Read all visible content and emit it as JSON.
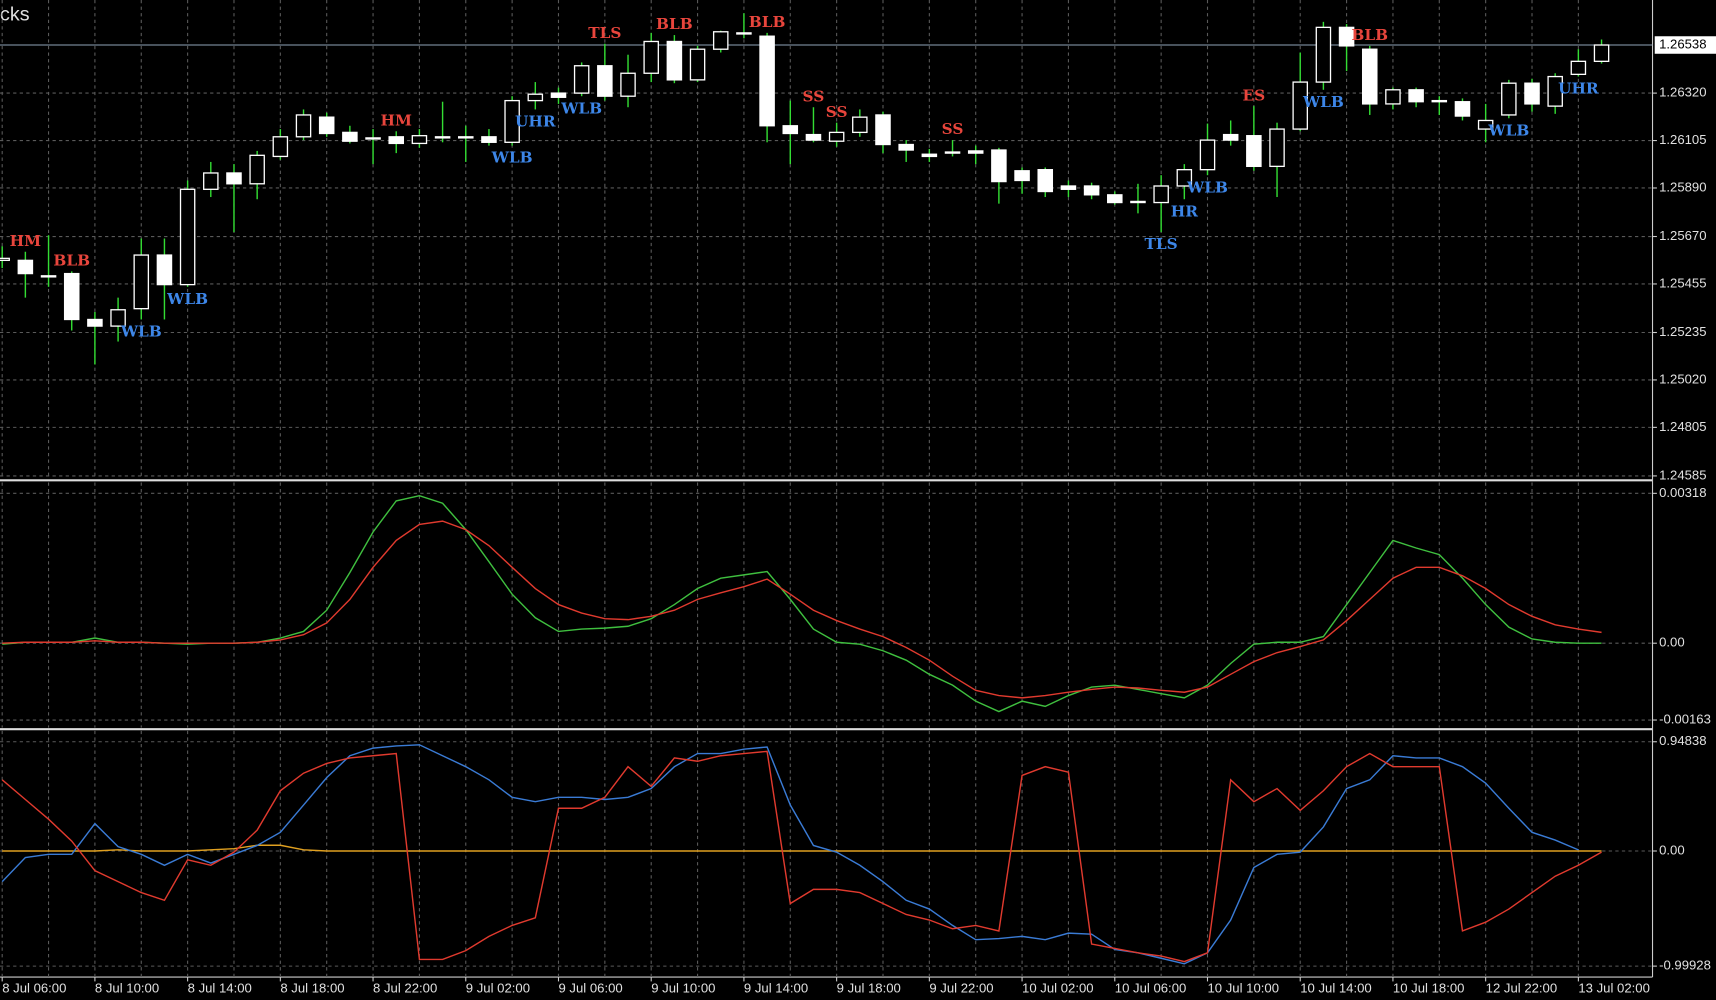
{
  "chart_data": [
    {
      "type": "candlestick",
      "title": "cks",
      "ylim": [
        1.24575,
        1.26742
      ],
      "yticks": [
        {
          "value": 1.2632,
          "label": "1.26320"
        },
        1.26105,
        {
          "value": 1.2589,
          "label": "1.25890"
        },
        {
          "value": 1.2567,
          "label": "1.25670"
        },
        1.25455,
        1.25235,
        {
          "value": 1.2502,
          "label": "1.25020"
        },
        1.24805,
        1.24585
      ],
      "grid": true,
      "up_color": "#ffffff",
      "down_color": "#ffffff",
      "wick_color": "#33dd33",
      "last_price": 1.26538,
      "last_price_color": "#8fa3b8",
      "categories": [
        "8 Jul 06:00",
        null,
        null,
        null,
        "8 Jul 10:00",
        null,
        null,
        null,
        "8 Jul 14:00",
        null,
        null,
        null,
        "8 Jul 18:00",
        null,
        null,
        null,
        "8 Jul 22:00",
        null,
        null,
        null,
        "9 Jul 02:00",
        null,
        null,
        null,
        "9 Jul 06:00",
        null,
        null,
        null,
        "9 Jul 10:00",
        null,
        null,
        null,
        "9 Jul 14:00",
        null,
        null,
        null,
        "9 Jul 18:00",
        null,
        null,
        null,
        "9 Jul 22:00",
        null,
        null,
        null,
        "10 Jul 02:00",
        null,
        null,
        null,
        "10 Jul 06:00",
        null,
        null,
        null,
        "10 Jul 10:00",
        null,
        null,
        null,
        "10 Jul 14:00",
        null,
        null,
        null,
        "10 Jul 18:00",
        null,
        null,
        null,
        "12 Jul 22:00",
        null,
        null,
        null,
        "13 Jul 02:00",
        null
      ],
      "ohlc": [
        [
          1.25562,
          1.25626,
          1.25527,
          1.25571
        ],
        [
          1.25562,
          1.25601,
          1.25393,
          1.25502
        ],
        [
          1.25492,
          1.25676,
          1.25442,
          1.25487
        ],
        [
          1.25502,
          1.25512,
          1.25244,
          1.25294
        ],
        [
          1.25294,
          1.25328,
          1.2509,
          1.25264
        ],
        [
          1.25264,
          1.25393,
          1.25194,
          1.25338
        ],
        [
          1.25343,
          1.25661,
          1.25294,
          1.25586
        ],
        [
          1.25586,
          1.25661,
          1.25294,
          1.25452
        ],
        [
          1.25452,
          1.25924,
          1.25442,
          1.25884
        ],
        [
          1.25884,
          1.26008,
          1.25849,
          1.25958
        ],
        [
          1.25958,
          1.25998,
          1.2569,
          1.25909
        ],
        [
          1.25909,
          1.26058,
          1.25839,
          1.26038
        ],
        [
          1.26033,
          1.26157,
          1.26018,
          1.26122
        ],
        [
          1.26122,
          1.26246,
          1.26107,
          1.26221
        ],
        [
          1.26211,
          1.26231,
          1.26122,
          1.26137
        ],
        [
          1.26142,
          1.26172,
          1.26092,
          1.26102
        ],
        [
          1.26117,
          1.26157,
          1.25998,
          1.26112
        ],
        [
          1.26122,
          1.26147,
          1.26048,
          1.26092
        ],
        [
          1.26092,
          1.26157,
          1.26072,
          1.26127
        ],
        [
          1.26117,
          1.26281,
          1.26097,
          1.26122
        ],
        [
          1.26122,
          1.26172,
          1.26008,
          1.26117
        ],
        [
          1.26122,
          1.26157,
          1.26082,
          1.26097
        ],
        [
          1.26097,
          1.26306,
          1.26082,
          1.26286
        ],
        [
          1.26286,
          1.2637,
          1.26246,
          1.26315
        ],
        [
          1.2632,
          1.26345,
          1.26271,
          1.26301
        ],
        [
          1.2632,
          1.26459,
          1.26306,
          1.26444
        ],
        [
          1.26444,
          1.26544,
          1.26286,
          1.26306
        ],
        [
          1.26306,
          1.26494,
          1.26256,
          1.2641
        ],
        [
          1.2641,
          1.26593,
          1.2637,
          1.26554
        ],
        [
          1.26554,
          1.26583,
          1.26365,
          1.2638
        ],
        [
          1.2638,
          1.26534,
          1.2637,
          1.26519
        ],
        [
          1.26519,
          1.26603,
          1.26504,
          1.26598
        ],
        [
          1.26593,
          1.26682,
          1.26568,
          1.26588
        ],
        [
          1.26578,
          1.26593,
          1.26097,
          1.26172
        ],
        [
          1.26172,
          1.26286,
          1.25998,
          1.26137
        ],
        [
          1.26132,
          1.26256,
          1.26097,
          1.26107
        ],
        [
          1.26102,
          1.26186,
          1.26077,
          1.26142
        ],
        [
          1.26142,
          1.26246,
          1.26122,
          1.26211
        ],
        [
          1.26221,
          1.26236,
          1.26048,
          1.26087
        ],
        [
          1.26087,
          1.26107,
          1.26008,
          1.26062
        ],
        [
          1.26043,
          1.26067,
          1.26008,
          1.26033
        ],
        [
          1.26048,
          1.26107,
          1.26033,
          1.26053
        ],
        [
          1.26058,
          1.26082,
          1.25998,
          1.26048
        ],
        [
          1.26062,
          1.26072,
          1.25819,
          1.25919
        ],
        [
          1.25968,
          1.25983,
          1.25864,
          1.25924
        ],
        [
          1.25973,
          1.25983,
          1.25849,
          1.25874
        ],
        [
          1.25899,
          1.25924,
          1.25849,
          1.25884
        ],
        [
          1.25899,
          1.25914,
          1.25839,
          1.25859
        ],
        [
          1.25859,
          1.25874,
          1.25814,
          1.25824
        ],
        [
          1.25829,
          1.25909,
          1.25775,
          1.25824
        ],
        [
          1.25824,
          1.25948,
          1.2569,
          1.25899
        ],
        [
          1.25899,
          1.25998,
          1.25839,
          1.25973
        ],
        [
          1.25973,
          1.26182,
          1.25948,
          1.26107
        ],
        [
          1.26132,
          1.26196,
          1.26082,
          1.26107
        ],
        [
          1.26127,
          1.26261,
          1.25968,
          1.25988
        ],
        [
          1.25988,
          1.26186,
          1.25849,
          1.26157
        ],
        [
          1.26157,
          1.26504,
          1.26147,
          1.2637
        ],
        [
          1.2637,
          1.26643,
          1.26335,
          1.26618
        ],
        [
          1.26618,
          1.26633,
          1.2642,
          1.26534
        ],
        [
          1.26519,
          1.26534,
          1.26221,
          1.26271
        ],
        [
          1.26271,
          1.26345,
          1.26246,
          1.26335
        ],
        [
          1.26335,
          1.26345,
          1.26256,
          1.26281
        ],
        [
          1.26286,
          1.26306,
          1.26221,
          1.26281
        ],
        [
          1.26281,
          1.26296,
          1.26196,
          1.26216
        ],
        [
          1.26157,
          1.26271,
          1.26097,
          1.26196
        ],
        [
          1.26221,
          1.2638,
          1.26206,
          1.26365
        ],
        [
          1.26365,
          1.26385,
          1.26236,
          1.26271
        ],
        [
          1.26261,
          1.2641,
          1.26226,
          1.26395
        ],
        [
          1.26405,
          1.26519,
          1.26395,
          1.26464
        ],
        [
          1.26464,
          1.26563,
          1.26454,
          1.26538
        ]
      ],
      "patterns": [
        {
          "position": "above",
          "color": "#e8453c",
          "labels": [
            null,
            "HM",
            null,
            "BLB",
            null,
            null,
            null,
            null,
            null,
            null,
            null,
            null,
            null,
            null,
            null,
            null,
            null,
            "HM",
            null,
            null,
            null,
            null,
            null,
            null,
            null,
            null,
            "TLS",
            null,
            null,
            "BLB",
            null,
            null,
            null,
            "BLB",
            null,
            "SS",
            "SS",
            null,
            null,
            null,
            null,
            "SS",
            null,
            null,
            null,
            null,
            null,
            null,
            null,
            null,
            null,
            null,
            null,
            null,
            "ES",
            null,
            null,
            null,
            null,
            "BLB",
            null,
            null,
            null,
            null,
            null,
            null,
            null,
            null,
            null,
            null
          ]
        },
        {
          "position": "below",
          "color": "#3d86e8",
          "labels": [
            null,
            null,
            null,
            null,
            null,
            null,
            "WLB",
            null,
            "WLB",
            null,
            null,
            null,
            null,
            null,
            null,
            null,
            null,
            null,
            null,
            null,
            null,
            null,
            "WLB",
            "UHR",
            null,
            "WLB",
            null,
            null,
            null,
            null,
            null,
            null,
            null,
            null,
            null,
            null,
            null,
            null,
            null,
            null,
            null,
            null,
            null,
            null,
            null,
            null,
            null,
            null,
            null,
            null,
            "TLS",
            "HR",
            "WLB",
            null,
            null,
            null,
            null,
            "WLB",
            null,
            null,
            null,
            null,
            null,
            null,
            null,
            "WLB",
            null,
            null,
            "UHR",
            null
          ]
        }
      ]
    },
    {
      "type": "line",
      "ylim": [
        -0.00179,
        0.00341
      ],
      "yticks": [
        0.00318,
        {
          "value": 0,
          "label": "0.00"
        },
        -0.00163
      ],
      "grid": true,
      "series": [
        {
          "color": "#3fbf3f",
          "values": [
            -2e-05,
            2e-05,
            2e-05,
            2e-05,
            0.00011,
            2e-05,
            2e-05,
            0,
            -2e-05,
            0,
            0,
            2e-05,
            0.00011,
            0.00025,
            0.0007,
            0.0015,
            0.00236,
            0.00302,
            0.00313,
            0.00297,
            0.00241,
            0.00173,
            0.00104,
            0.00054,
            0.00025,
            0.0003,
            0.00032,
            0.00036,
            0.00052,
            0.00082,
            0.00116,
            0.00138,
            0.00145,
            0.00152,
            0.00093,
            0.0003,
            2e-05,
            -2e-05,
            -0.00016,
            -0.00036,
            -0.00066,
            -0.00089,
            -0.00123,
            -0.00145,
            -0.00123,
            -0.00134,
            -0.00111,
            -0.00093,
            -0.00089,
            -0.00098,
            -0.00107,
            -0.00116,
            -0.00089,
            -0.00043,
            -2e-05,
            2e-05,
            2e-05,
            0.00014,
            0.00082,
            0.0015,
            0.00218,
            0.00202,
            0.00188,
            0.00138,
            0.00082,
            0.00034,
            9e-05,
            2e-05,
            0,
            0
          ]
        },
        {
          "color": "#e03a2e",
          "values": [
            0,
            2e-05,
            2e-05,
            2e-05,
            5e-05,
            2e-05,
            2e-05,
            0,
            0,
            0,
            0,
            2e-05,
            7e-05,
            0.00018,
            0.00043,
            0.00093,
            0.00161,
            0.00218,
            0.00252,
            0.00259,
            0.00241,
            0.00207,
            0.00161,
            0.00116,
            0.00082,
            0.00064,
            0.00052,
            0.0005,
            0.00057,
            0.0007,
            0.00093,
            0.00107,
            0.0012,
            0.00136,
            0.00104,
            0.0007,
            0.00048,
            0.0003,
            0.00014,
            -9e-05,
            -0.00036,
            -0.0007,
            -0.001,
            -0.00111,
            -0.00116,
            -0.00111,
            -0.00104,
            -0.00098,
            -0.00093,
            -0.00095,
            -0.001,
            -0.00104,
            -0.00093,
            -0.00066,
            -0.00039,
            -0.0002,
            -7e-05,
            7e-05,
            0.00048,
            0.00093,
            0.00138,
            0.00161,
            0.00161,
            0.00143,
            0.00116,
            0.00082,
            0.00057,
            0.00039,
            0.0003,
            0.00023
          ]
        }
      ]
    },
    {
      "type": "line",
      "ylim": [
        -1.094,
        1.043
      ],
      "yticks": [
        0.94838,
        {
          "value": 0,
          "label": "0.00"
        },
        -0.99928
      ],
      "grid": true,
      "series": [
        {
          "color": "#e0a020",
          "values": [
            0,
            0,
            0,
            0,
            0,
            0.01,
            0,
            0,
            0,
            0.01,
            0.02,
            0.05,
            0.05,
            0.01,
            0,
            0,
            0,
            0,
            0,
            0,
            0,
            0,
            0,
            0,
            0,
            0,
            0,
            0,
            0,
            0,
            0,
            0,
            0,
            0,
            0,
            0,
            0,
            0,
            0,
            0,
            0,
            0,
            0,
            0,
            0,
            0,
            0,
            0,
            0,
            0,
            0,
            0,
            0,
            0,
            0,
            0,
            0,
            0,
            0,
            0,
            0,
            0,
            0,
            0,
            0,
            0,
            0,
            0,
            0,
            0
          ]
        },
        {
          "color": "#3a7bd5",
          "values": [
            -0.266,
            -0.057,
            -0.029,
            -0.029,
            0.238,
            0.038,
            -0.029,
            -0.124,
            -0.029,
            -0.105,
            -0.029,
            0.048,
            0.162,
            0.399,
            0.637,
            0.827,
            0.893,
            0.912,
            0.922,
            0.827,
            0.732,
            0.618,
            0.466,
            0.428,
            0.466,
            0.466,
            0.447,
            0.466,
            0.542,
            0.732,
            0.846,
            0.846,
            0.884,
            0.903,
            0.399,
            0.048,
            -0.01,
            -0.124,
            -0.266,
            -0.428,
            -0.504,
            -0.646,
            -0.77,
            -0.76,
            -0.741,
            -0.77,
            -0.713,
            -0.722,
            -0.855,
            -0.884,
            -0.931,
            -0.979,
            -0.884,
            -0.599,
            -0.143,
            -0.029,
            -0.01,
            0.209,
            0.542,
            0.618,
            0.827,
            0.808,
            0.808,
            0.732,
            0.589,
            0.371,
            0.162,
            0.095,
            0.01,
            null
          ]
        },
        {
          "color": "#e03a2e",
          "values": [
            0.618,
            0.447,
            0.276,
            0.086,
            -0.171,
            -0.266,
            -0.361,
            -0.428,
            -0.076,
            -0.124,
            -0.01,
            0.181,
            0.523,
            0.675,
            0.76,
            0.808,
            0.827,
            0.846,
            -0.941,
            -0.941,
            -0.865,
            -0.741,
            -0.646,
            -0.58,
            0.371,
            0.371,
            0.466,
            0.732,
            0.561,
            0.808,
            0.779,
            0.827,
            0.846,
            0.865,
            -0.456,
            -0.333,
            -0.333,
            -0.361,
            -0.456,
            -0.551,
            -0.599,
            -0.675,
            -0.646,
            -0.694,
            0.656,
            0.732,
            0.684,
            -0.808,
            -0.846,
            -0.884,
            -0.912,
            -0.96,
            -0.884,
            0.618,
            0.428,
            0.542,
            0.352,
            0.523,
            0.732,
            0.846,
            0.732,
            0.732,
            0.732,
            -0.694,
            -0.618,
            -0.504,
            -0.361,
            -0.219,
            -0.124,
            -0.01
          ]
        }
      ]
    }
  ]
}
